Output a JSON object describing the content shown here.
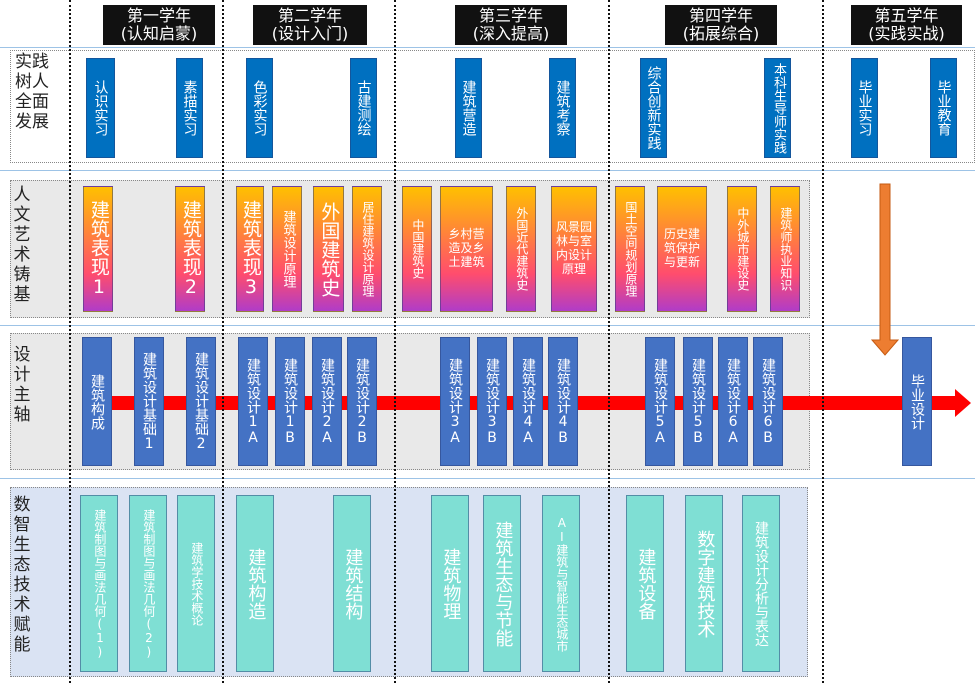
{
  "years": [
    {
      "title": "第一学年",
      "subtitle": "(认知启蒙)"
    },
    {
      "title": "第二学年",
      "subtitle": "(设计入门)"
    },
    {
      "title": "第三学年",
      "subtitle": "(深入提高)"
    },
    {
      "title": "第四学年",
      "subtitle": "(拓展综合)"
    },
    {
      "title": "第五学年",
      "subtitle": "(实践实战)"
    }
  ],
  "rows": [
    {
      "label": "实践树人全面发展",
      "items": [
        "认识实习",
        "素描实习",
        "色彩实习",
        "古建测绘",
        "建筑营造",
        "建筑考察",
        "综合创新实践",
        "本科生导师实践",
        "毕业实习",
        "毕业教育"
      ]
    },
    {
      "label": "人文艺术铸基",
      "items": [
        "建筑表现1",
        "建筑表现2",
        "建筑表现3",
        "建筑设计原理",
        "外国建筑史",
        "居住建筑设计原理",
        "中国建筑史",
        "乡村营造及乡土建筑",
        "外国近代建筑史",
        "风景园林与室内设计原理",
        "国土空间规划原理",
        "历史建筑保护与更新",
        "中外城市建设史",
        "建筑师执业知识"
      ]
    },
    {
      "label": "设计主轴",
      "items": [
        "建筑构成",
        "建筑设计基础1",
        "建筑设计基础2",
        "建筑设计1A",
        "建筑设计1B",
        "建筑设计2A",
        "建筑设计2B",
        "建筑设计3A",
        "建筑设计3B",
        "建筑设计4A",
        "建筑设计4B",
        "建筑设计5A",
        "建筑设计5B",
        "建筑设计6A",
        "建筑设计6B",
        "毕业设计"
      ]
    },
    {
      "label": "数智生态技术赋能",
      "items": [
        "建筑制图与画法几何(1)",
        "建筑制图与画法几何(2)",
        "建筑学技术概论",
        "建筑构造",
        "建筑结构",
        "建筑物理",
        "建筑生态与节能",
        "AI建筑与智能生态城市",
        "建筑设备",
        "数字建筑技术",
        "建筑设计分析与表达"
      ]
    }
  ]
}
